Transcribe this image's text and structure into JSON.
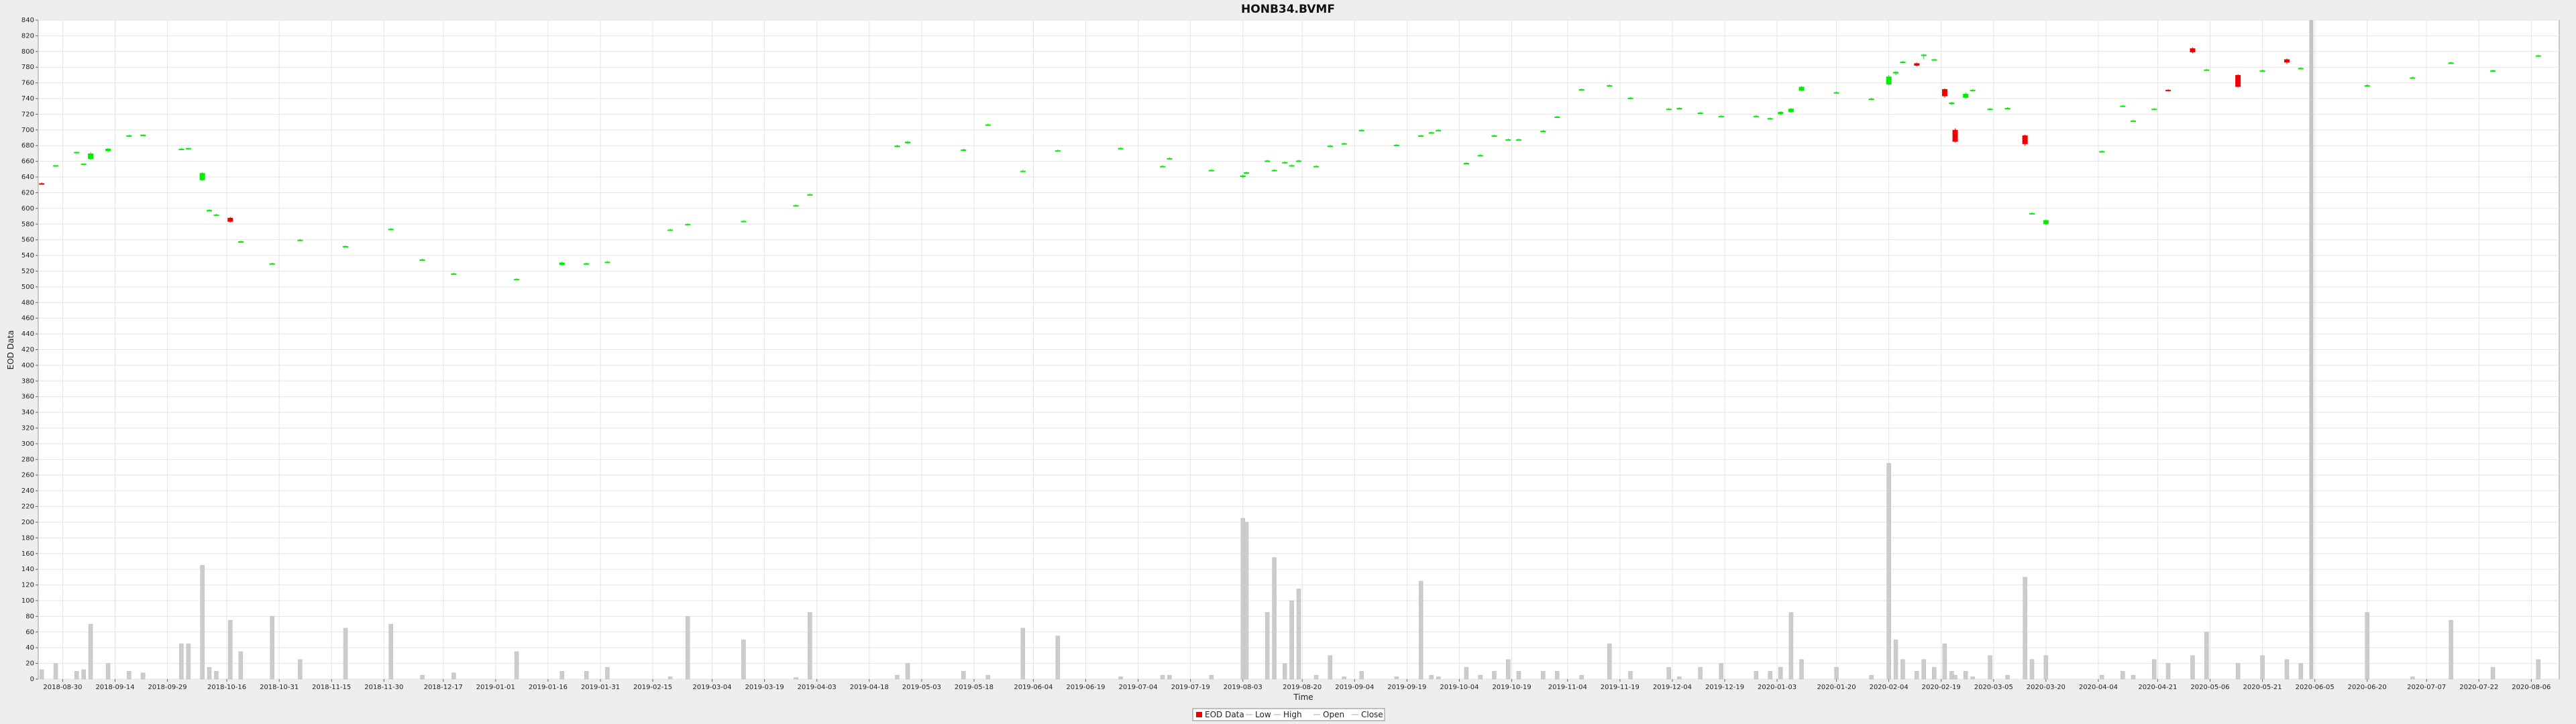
{
  "chart_data": {
    "type": "candlestick",
    "title": "HONB34.BVMF",
    "xlabel": "Time",
    "ylabel": "EOD Data",
    "ylim": [
      0,
      840
    ],
    "ytick_step": 20,
    "xlim": [
      "2018-08-23",
      "2020-08-14"
    ],
    "grid": true,
    "legend_position": "bottom-center",
    "legend": [
      "EOD Data",
      "Low",
      "High",
      "Open",
      "Close"
    ],
    "colors": {
      "up": "#00ee00",
      "down": "#ee0000",
      "volume": "#cccccc",
      "grid": "#e4e4e4",
      "plot_bg": "#ffffff",
      "page_bg": "#eeeeee"
    },
    "x_tick_labels": [
      "2018-08-30",
      "2018-09-14",
      "2018-09-29",
      "2018-10-16",
      "2018-10-31",
      "2018-11-15",
      "2018-11-30",
      "2018-12-17",
      "2019-01-01",
      "2019-01-16",
      "2019-01-31",
      "2019-02-15",
      "2019-03-04",
      "2019-03-19",
      "2019-04-03",
      "2019-04-18",
      "2019-05-03",
      "2019-05-18",
      "2019-06-04",
      "2019-06-19",
      "2019-07-04",
      "2019-07-19",
      "2019-08-03",
      "2019-08-20",
      "2019-09-04",
      "2019-09-19",
      "2019-10-04",
      "2019-10-19",
      "2019-11-04",
      "2019-11-19",
      "2019-12-04",
      "2019-12-19",
      "2020-01-03",
      "2020-01-20",
      "2020-02-04",
      "2020-02-19",
      "2020-03-05",
      "2020-03-20",
      "2020-04-04",
      "2020-04-21",
      "2020-05-06",
      "2020-05-21",
      "2020-06-05",
      "2020-06-20",
      "2020-07-07",
      "2020-07-22",
      "2020-08-06"
    ],
    "crosshair_date": "2020-06-04",
    "ohlc": [
      {
        "date": "2018-08-24",
        "open": 632,
        "high": 633,
        "low": 631,
        "close": 631,
        "volume": 12
      },
      {
        "date": "2018-08-28",
        "open": 654,
        "high": 655,
        "low": 653,
        "close": 655,
        "volume": 20
      },
      {
        "date": "2018-09-03",
        "open": 671,
        "high": 672,
        "low": 670,
        "close": 672,
        "volume": 10
      },
      {
        "date": "2018-09-05",
        "open": 656,
        "high": 657,
        "low": 655,
        "close": 657,
        "volume": 12
      },
      {
        "date": "2018-09-07",
        "open": 663,
        "high": 672,
        "low": 662,
        "close": 670,
        "volume": 70
      },
      {
        "date": "2018-09-12",
        "open": 673,
        "high": 677,
        "low": 672,
        "close": 676,
        "volume": 20
      },
      {
        "date": "2018-09-18",
        "open": 693,
        "high": 694,
        "low": 692,
        "close": 693,
        "volume": 10
      },
      {
        "date": "2018-09-22",
        "open": 693,
        "high": 694,
        "low": 692,
        "close": 694,
        "volume": 8
      },
      {
        "date": "2018-10-03",
        "open": 676,
        "high": 677,
        "low": 675,
        "close": 676,
        "volume": 45
      },
      {
        "date": "2018-10-05",
        "open": 676,
        "high": 677,
        "low": 675,
        "close": 677,
        "volume": 45
      },
      {
        "date": "2018-10-09",
        "open": 636,
        "high": 646,
        "low": 635,
        "close": 645,
        "volume": 145
      },
      {
        "date": "2018-10-11",
        "open": 598,
        "high": 599,
        "low": 597,
        "close": 598,
        "volume": 15
      },
      {
        "date": "2018-10-13",
        "open": 592,
        "high": 593,
        "low": 591,
        "close": 592,
        "volume": 10
      },
      {
        "date": "2018-10-17",
        "open": 588,
        "high": 589,
        "low": 582,
        "close": 583,
        "volume": 75
      },
      {
        "date": "2018-10-20",
        "open": 558,
        "high": 559,
        "low": 557,
        "close": 558,
        "volume": 35
      },
      {
        "date": "2018-10-29",
        "open": 530,
        "high": 531,
        "low": 529,
        "close": 530,
        "volume": 80
      },
      {
        "date": "2018-11-06",
        "open": 560,
        "high": 561,
        "low": 559,
        "close": 560,
        "volume": 25
      },
      {
        "date": "2018-11-19",
        "open": 552,
        "high": 553,
        "low": 551,
        "close": 552,
        "volume": 65
      },
      {
        "date": "2018-12-02",
        "open": 574,
        "high": 575,
        "low": 573,
        "close": 574,
        "volume": 70
      },
      {
        "date": "2018-12-11",
        "open": 535,
        "high": 536,
        "low": 534,
        "close": 535,
        "volume": 5
      },
      {
        "date": "2018-12-20",
        "open": 517,
        "high": 518,
        "low": 516,
        "close": 517,
        "volume": 8
      },
      {
        "date": "2019-01-07",
        "open": 510,
        "high": 511,
        "low": 509,
        "close": 510,
        "volume": 35
      },
      {
        "date": "2019-01-20",
        "open": 528,
        "high": 532,
        "low": 527,
        "close": 531,
        "volume": 10
      },
      {
        "date": "2019-01-27",
        "open": 530,
        "high": 531,
        "low": 529,
        "close": 530,
        "volume": 10
      },
      {
        "date": "2019-02-02",
        "open": 532,
        "high": 533,
        "low": 531,
        "close": 532,
        "volume": 15
      },
      {
        "date": "2019-02-20",
        "open": 573,
        "high": 574,
        "low": 572,
        "close": 573,
        "volume": 3
      },
      {
        "date": "2019-02-25",
        "open": 580,
        "high": 581,
        "low": 579,
        "close": 580,
        "volume": 80
      },
      {
        "date": "2019-03-13",
        "open": 584,
        "high": 585,
        "low": 583,
        "close": 584,
        "volume": 50
      },
      {
        "date": "2019-03-28",
        "open": 604,
        "high": 605,
        "low": 603,
        "close": 604,
        "volume": 2
      },
      {
        "date": "2019-04-01",
        "open": 618,
        "high": 619,
        "low": 617,
        "close": 618,
        "volume": 85
      },
      {
        "date": "2019-04-26",
        "open": 680,
        "high": 681,
        "low": 679,
        "close": 680,
        "volume": 5
      },
      {
        "date": "2019-04-29",
        "open": 683,
        "high": 686,
        "low": 682,
        "close": 685,
        "volume": 20
      },
      {
        "date": "2019-05-15",
        "open": 675,
        "high": 676,
        "low": 674,
        "close": 675,
        "volume": 10
      },
      {
        "date": "2019-05-22",
        "open": 707,
        "high": 708,
        "low": 706,
        "close": 707,
        "volume": 5
      },
      {
        "date": "2019-06-01",
        "open": 648,
        "high": 649,
        "low": 647,
        "close": 648,
        "volume": 65
      },
      {
        "date": "2019-06-11",
        "open": 674,
        "high": 675,
        "low": 673,
        "close": 674,
        "volume": 55
      },
      {
        "date": "2019-06-29",
        "open": 677,
        "high": 678,
        "low": 676,
        "close": 677,
        "volume": 3
      },
      {
        "date": "2019-07-11",
        "open": 654,
        "high": 655,
        "low": 653,
        "close": 654,
        "volume": 5
      },
      {
        "date": "2019-07-13",
        "open": 664,
        "high": 665,
        "low": 663,
        "close": 664,
        "volume": 5
      },
      {
        "date": "2019-07-25",
        "open": 649,
        "high": 650,
        "low": 648,
        "close": 649,
        "volume": 5
      },
      {
        "date": "2019-08-03",
        "open": 640,
        "high": 643,
        "low": 639,
        "close": 642,
        "volume": 205
      },
      {
        "date": "2019-08-04",
        "open": 645,
        "high": 647,
        "low": 644,
        "close": 646,
        "volume": 200
      },
      {
        "date": "2019-08-10",
        "open": 661,
        "high": 662,
        "low": 660,
        "close": 661,
        "volume": 85
      },
      {
        "date": "2019-08-12",
        "open": 648,
        "high": 650,
        "low": 647,
        "close": 649,
        "volume": 155
      },
      {
        "date": "2019-08-15",
        "open": 658,
        "high": 660,
        "low": 657,
        "close": 659,
        "volume": 20
      },
      {
        "date": "2019-08-17",
        "open": 655,
        "high": 656,
        "low": 654,
        "close": 655,
        "volume": 100
      },
      {
        "date": "2019-08-19",
        "open": 660,
        "high": 662,
        "low": 659,
        "close": 661,
        "volume": 115
      },
      {
        "date": "2019-08-24",
        "open": 654,
        "high": 655,
        "low": 653,
        "close": 654,
        "volume": 5
      },
      {
        "date": "2019-08-28",
        "open": 680,
        "high": 681,
        "low": 679,
        "close": 680,
        "volume": 30
      },
      {
        "date": "2019-09-01",
        "open": 683,
        "high": 684,
        "low": 682,
        "close": 683,
        "volume": 3
      },
      {
        "date": "2019-09-06",
        "open": 700,
        "high": 701,
        "low": 699,
        "close": 700,
        "volume": 10
      },
      {
        "date": "2019-09-16",
        "open": 681,
        "high": 682,
        "low": 680,
        "close": 681,
        "volume": 3
      },
      {
        "date": "2019-09-23",
        "open": 693,
        "high": 694,
        "low": 692,
        "close": 693,
        "volume": 125
      },
      {
        "date": "2019-09-26",
        "open": 697,
        "high": 698,
        "low": 696,
        "close": 697,
        "volume": 5
      },
      {
        "date": "2019-09-28",
        "open": 700,
        "high": 701,
        "low": 699,
        "close": 700,
        "volume": 3
      },
      {
        "date": "2019-10-06",
        "open": 658,
        "high": 659,
        "low": 657,
        "close": 658,
        "volume": 15
      },
      {
        "date": "2019-10-10",
        "open": 668,
        "high": 669,
        "low": 667,
        "close": 668,
        "volume": 5
      },
      {
        "date": "2019-10-14",
        "open": 693,
        "high": 694,
        "low": 692,
        "close": 693,
        "volume": 10
      },
      {
        "date": "2019-10-18",
        "open": 688,
        "high": 689,
        "low": 687,
        "close": 688,
        "volume": 25
      },
      {
        "date": "2019-10-21",
        "open": 688,
        "high": 689,
        "low": 687,
        "close": 688,
        "volume": 10
      },
      {
        "date": "2019-10-28",
        "open": 699,
        "high": 700,
        "low": 698,
        "close": 699,
        "volume": 10
      },
      {
        "date": "2019-11-01",
        "open": 717,
        "high": 718,
        "low": 716,
        "close": 717,
        "volume": 10
      },
      {
        "date": "2019-11-08",
        "open": 752,
        "high": 753,
        "low": 751,
        "close": 752,
        "volume": 5
      },
      {
        "date": "2019-11-16",
        "open": 757,
        "high": 758,
        "low": 756,
        "close": 757,
        "volume": 45
      },
      {
        "date": "2019-11-22",
        "open": 741,
        "high": 742,
        "low": 740,
        "close": 741,
        "volume": 10
      },
      {
        "date": "2019-12-03",
        "open": 727,
        "high": 728,
        "low": 726,
        "close": 727,
        "volume": 15
      },
      {
        "date": "2019-12-06",
        "open": 728,
        "high": 729,
        "low": 727,
        "close": 728,
        "volume": 3
      },
      {
        "date": "2019-12-12",
        "open": 722,
        "high": 723,
        "low": 721,
        "close": 722,
        "volume": 15
      },
      {
        "date": "2019-12-18",
        "open": 718,
        "high": 719,
        "low": 717,
        "close": 718,
        "volume": 20
      },
      {
        "date": "2019-12-28",
        "open": 718,
        "high": 719,
        "low": 717,
        "close": 718,
        "volume": 10
      },
      {
        "date": "2020-01-01",
        "open": 715,
        "high": 716,
        "low": 714,
        "close": 715,
        "volume": 10
      },
      {
        "date": "2020-01-04",
        "open": 720,
        "high": 724,
        "low": 719,
        "close": 723,
        "volume": 15
      },
      {
        "date": "2020-01-07",
        "open": 723,
        "high": 728,
        "low": 722,
        "close": 727,
        "volume": 85
      },
      {
        "date": "2020-01-10",
        "open": 750,
        "high": 756,
        "low": 749,
        "close": 755,
        "volume": 25
      },
      {
        "date": "2020-01-20",
        "open": 748,
        "high": 749,
        "low": 747,
        "close": 748,
        "volume": 15
      },
      {
        "date": "2020-01-30",
        "open": 740,
        "high": 741,
        "low": 739,
        "close": 740,
        "volume": 5
      },
      {
        "date": "2020-02-04",
        "open": 758,
        "high": 770,
        "low": 757,
        "close": 768,
        "volume": 275
      },
      {
        "date": "2020-02-06",
        "open": 772,
        "high": 775,
        "low": 770,
        "close": 774,
        "volume": 50
      },
      {
        "date": "2020-02-08",
        "open": 786,
        "high": 788,
        "low": 785,
        "close": 787,
        "volume": 25
      },
      {
        "date": "2020-02-12",
        "open": 785,
        "high": 786,
        "low": 781,
        "close": 782,
        "volume": 10
      },
      {
        "date": "2020-02-14",
        "open": 795,
        "high": 797,
        "low": 790,
        "close": 796,
        "volume": 25
      },
      {
        "date": "2020-02-17",
        "open": 790,
        "high": 791,
        "low": 789,
        "close": 790,
        "volume": 15
      },
      {
        "date": "2020-02-20",
        "open": 752,
        "high": 753,
        "low": 741,
        "close": 743,
        "volume": 45
      },
      {
        "date": "2020-02-22",
        "open": 733,
        "high": 736,
        "low": 732,
        "close": 735,
        "volume": 10
      },
      {
        "date": "2020-02-23",
        "open": 700,
        "high": 702,
        "low": 684,
        "close": 685,
        "volume": 5
      },
      {
        "date": "2020-02-26",
        "open": 741,
        "high": 748,
        "low": 740,
        "close": 746,
        "volume": 10
      },
      {
        "date": "2020-02-28",
        "open": 750,
        "high": 752,
        "low": 749,
        "close": 751,
        "volume": 3
      },
      {
        "date": "2020-03-04",
        "open": 727,
        "high": 728,
        "low": 726,
        "close": 727,
        "volume": 30
      },
      {
        "date": "2020-03-09",
        "open": 728,
        "high": 729,
        "low": 727,
        "close": 728,
        "volume": 5
      },
      {
        "date": "2020-03-14",
        "open": 693,
        "high": 694,
        "low": 680,
        "close": 682,
        "volume": 130
      },
      {
        "date": "2020-03-16",
        "open": 593,
        "high": 595,
        "low": 592,
        "close": 594,
        "volume": 25
      },
      {
        "date": "2020-03-20",
        "open": 580,
        "high": 586,
        "low": 579,
        "close": 585,
        "volume": 30
      },
      {
        "date": "2020-04-05",
        "open": 673,
        "high": 674,
        "low": 672,
        "close": 673,
        "volume": 5
      },
      {
        "date": "2020-04-11",
        "open": 731,
        "high": 732,
        "low": 730,
        "close": 731,
        "volume": 10
      },
      {
        "date": "2020-04-14",
        "open": 712,
        "high": 713,
        "low": 711,
        "close": 712,
        "volume": 5
      },
      {
        "date": "2020-04-20",
        "open": 727,
        "high": 728,
        "low": 726,
        "close": 727,
        "volume": 25
      },
      {
        "date": "2020-04-24",
        "open": 751,
        "high": 752,
        "low": 749,
        "close": 750,
        "volume": 20
      },
      {
        "date": "2020-05-01",
        "open": 804,
        "high": 805,
        "low": 798,
        "close": 799,
        "volume": 30
      },
      {
        "date": "2020-05-05",
        "open": 777,
        "high": 778,
        "low": 776,
        "close": 777,
        "volume": 60
      },
      {
        "date": "2020-05-14",
        "open": 770,
        "high": 771,
        "low": 754,
        "close": 755,
        "volume": 20
      },
      {
        "date": "2020-05-21",
        "open": 776,
        "high": 777,
        "low": 775,
        "close": 776,
        "volume": 30
      },
      {
        "date": "2020-05-28",
        "open": 790,
        "high": 791,
        "low": 784,
        "close": 786,
        "volume": 25
      },
      {
        "date": "2020-06-01",
        "open": 779,
        "high": 780,
        "low": 778,
        "close": 779,
        "volume": 20
      },
      {
        "date": "2020-06-20",
        "open": 757,
        "high": 758,
        "low": 756,
        "close": 757,
        "volume": 85
      },
      {
        "date": "2020-07-03",
        "open": 767,
        "high": 768,
        "low": 766,
        "close": 767,
        "volume": 3
      },
      {
        "date": "2020-07-14",
        "open": 786,
        "high": 787,
        "low": 785,
        "close": 786,
        "volume": 75
      },
      {
        "date": "2020-07-26",
        "open": 775,
        "high": 777,
        "low": 774,
        "close": 776,
        "volume": 15
      },
      {
        "date": "2020-08-08",
        "open": 795,
        "high": 796,
        "low": 794,
        "close": 795,
        "volume": 25
      }
    ]
  }
}
